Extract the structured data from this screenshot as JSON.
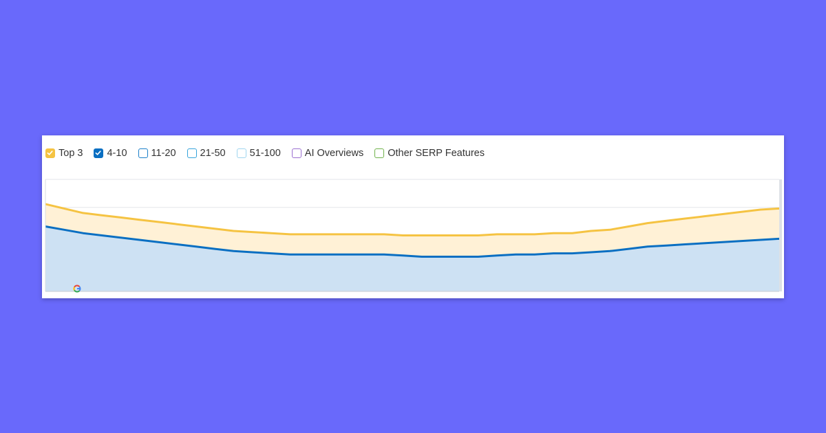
{
  "legend": {
    "items": [
      {
        "label": "Top 3",
        "checked": true,
        "color": "#f5c342"
      },
      {
        "label": "4-10",
        "checked": true,
        "color": "#0a6fc2"
      },
      {
        "label": "11-20",
        "checked": false,
        "color": "#1a7fc9"
      },
      {
        "label": "21-50",
        "checked": false,
        "color": "#34a3db"
      },
      {
        "label": "51-100",
        "checked": false,
        "color": "#9fd5ef"
      },
      {
        "label": "AI Overviews",
        "checked": false,
        "color": "#9a6fd0"
      },
      {
        "label": "Other SERP Features",
        "checked": false,
        "color": "#6fb14a"
      }
    ]
  },
  "chart_data": {
    "type": "area",
    "stacked": true,
    "ylim": [
      0,
      100
    ],
    "grid": true,
    "grid_y": [
      25,
      50,
      75,
      100
    ],
    "legend_position": "top-left",
    "watermark_icon": "google-g-icon",
    "series": [
      {
        "name": "4-10",
        "color": "#0a6fc2",
        "fill": "#cde1f3",
        "values": [
          58,
          55,
          52,
          50,
          48,
          46,
          44,
          42,
          40,
          38,
          36,
          35,
          34,
          33,
          33,
          33,
          33,
          33,
          33,
          32,
          31,
          31,
          31,
          31,
          32,
          33,
          33,
          34,
          34,
          35,
          36,
          38,
          40,
          41,
          42,
          43,
          44,
          45,
          46,
          47
        ]
      },
      {
        "name": "Top 3",
        "color": "#f5c342",
        "fill": "#fff1d6",
        "values": [
          20,
          19,
          18,
          18,
          18,
          18,
          18,
          18,
          18,
          18,
          18,
          18,
          18,
          18,
          18,
          18,
          18,
          18,
          18,
          18,
          19,
          19,
          19,
          19,
          19,
          18,
          18,
          18,
          18,
          19,
          19,
          20,
          21,
          22,
          23,
          24,
          25,
          26,
          27,
          27
        ]
      }
    ]
  }
}
